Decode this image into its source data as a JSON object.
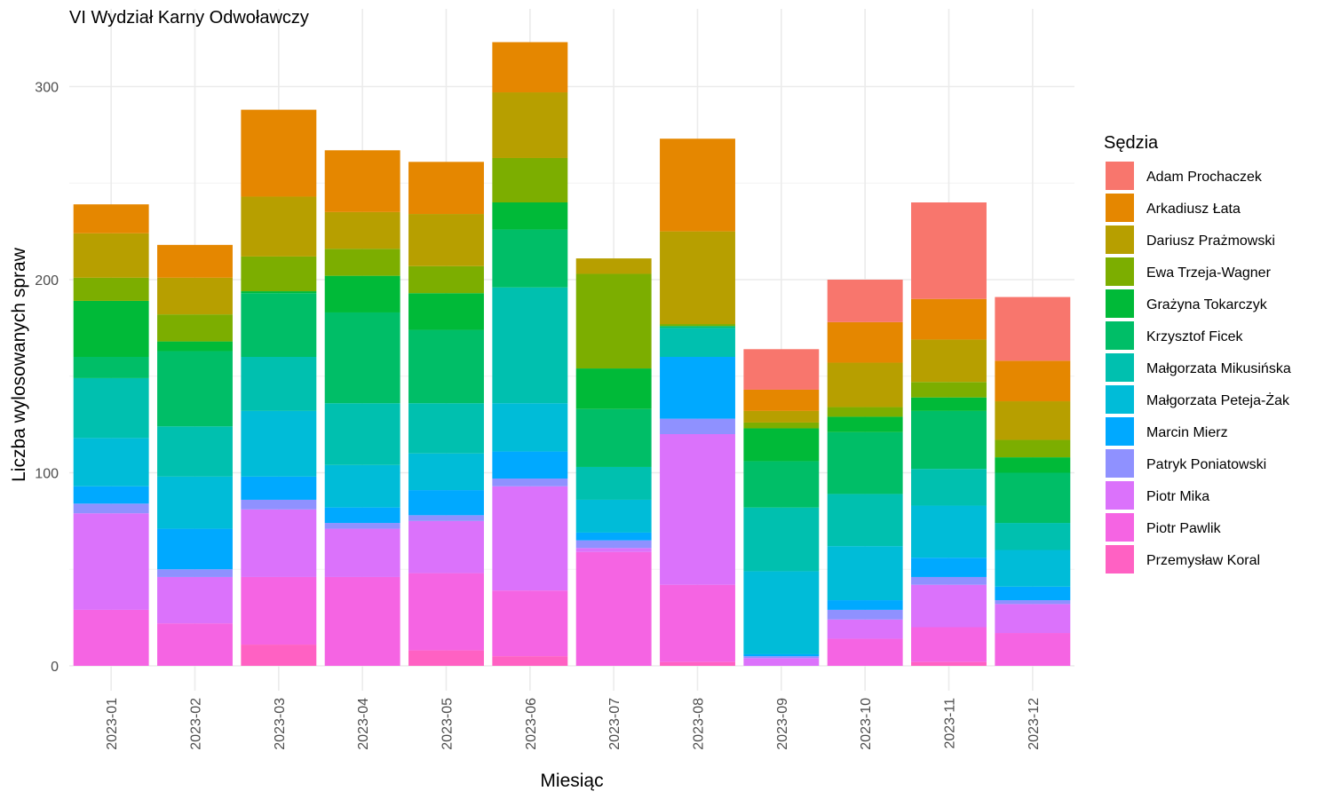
{
  "chart_data": {
    "type": "bar",
    "stacked": true,
    "title": "VI Wydział Karny Odwoławczy",
    "xlabel": "Miesiąc",
    "ylabel": "Liczba wylosowanych spraw",
    "ylim": [
      0,
      330
    ],
    "yticks": [
      0,
      100,
      200,
      300
    ],
    "grid": true,
    "legend": {
      "title": "Sędzia",
      "position": "right"
    },
    "categories": [
      "2023-01",
      "2023-02",
      "2023-03",
      "2023-04",
      "2023-05",
      "2023-06",
      "2023-07",
      "2023-08",
      "2023-09",
      "2023-10",
      "2023-11",
      "2023-12"
    ],
    "series": [
      {
        "name": "Przemysław Koral",
        "color": "#FF61C3",
        "values": [
          0,
          0,
          11,
          0,
          8,
          5,
          0,
          2,
          0,
          0,
          2,
          0
        ]
      },
      {
        "name": "Piotr Pawlik",
        "color": "#F564E3",
        "values": [
          29,
          22,
          35,
          46,
          40,
          34,
          59,
          40,
          0,
          14,
          18,
          17
        ]
      },
      {
        "name": "Piotr Mika",
        "color": "#DB72FB",
        "values": [
          50,
          24,
          35,
          25,
          27,
          54,
          2,
          78,
          4,
          10,
          22,
          15
        ]
      },
      {
        "name": "Patryk Poniatowski",
        "color": "#8F91FF",
        "values": [
          5,
          4,
          5,
          3,
          3,
          4,
          4,
          8,
          1,
          5,
          4,
          2
        ]
      },
      {
        "name": "Marcin Mierz",
        "color": "#00A9FF",
        "values": [
          9,
          21,
          12,
          8,
          13,
          14,
          4,
          32,
          1,
          5,
          10,
          7
        ]
      },
      {
        "name": "Małgorzata Peteja-Żak",
        "color": "#00BCD8",
        "values": [
          25,
          27,
          34,
          22,
          19,
          25,
          17,
          0,
          43,
          28,
          27,
          19
        ]
      },
      {
        "name": "Małgorzata Mikusińska",
        "color": "#00C0AF",
        "values": [
          31,
          26,
          28,
          32,
          26,
          60,
          17,
          15,
          33,
          27,
          19,
          14
        ]
      },
      {
        "name": "Krzysztof Ficek",
        "color": "#00BE67",
        "values": [
          11,
          39,
          33,
          47,
          38,
          30,
          30,
          1,
          24,
          32,
          30,
          26
        ]
      },
      {
        "name": "Grażyna Tokarczyk",
        "color": "#00BA38",
        "values": [
          29,
          5,
          1,
          19,
          19,
          14,
          21,
          0,
          17,
          8,
          7,
          8
        ]
      },
      {
        "name": "Ewa Trzeja-Wagner",
        "color": "#7CAE00",
        "values": [
          12,
          14,
          18,
          14,
          14,
          23,
          49,
          1,
          3,
          5,
          8,
          9
        ]
      },
      {
        "name": "Dariusz Prażmowski",
        "color": "#B79F00",
        "values": [
          23,
          19,
          31,
          19,
          27,
          34,
          8,
          48,
          6,
          23,
          22,
          20
        ]
      },
      {
        "name": "Arkadiusz Łata",
        "color": "#E58700",
        "values": [
          15,
          17,
          45,
          32,
          27,
          26,
          0,
          48,
          11,
          21,
          21,
          21
        ]
      },
      {
        "name": "Adam Prochaczek",
        "color": "#F8766D",
        "values": [
          0,
          0,
          0,
          0,
          0,
          0,
          0,
          0,
          21,
          22,
          50,
          33
        ]
      }
    ]
  }
}
